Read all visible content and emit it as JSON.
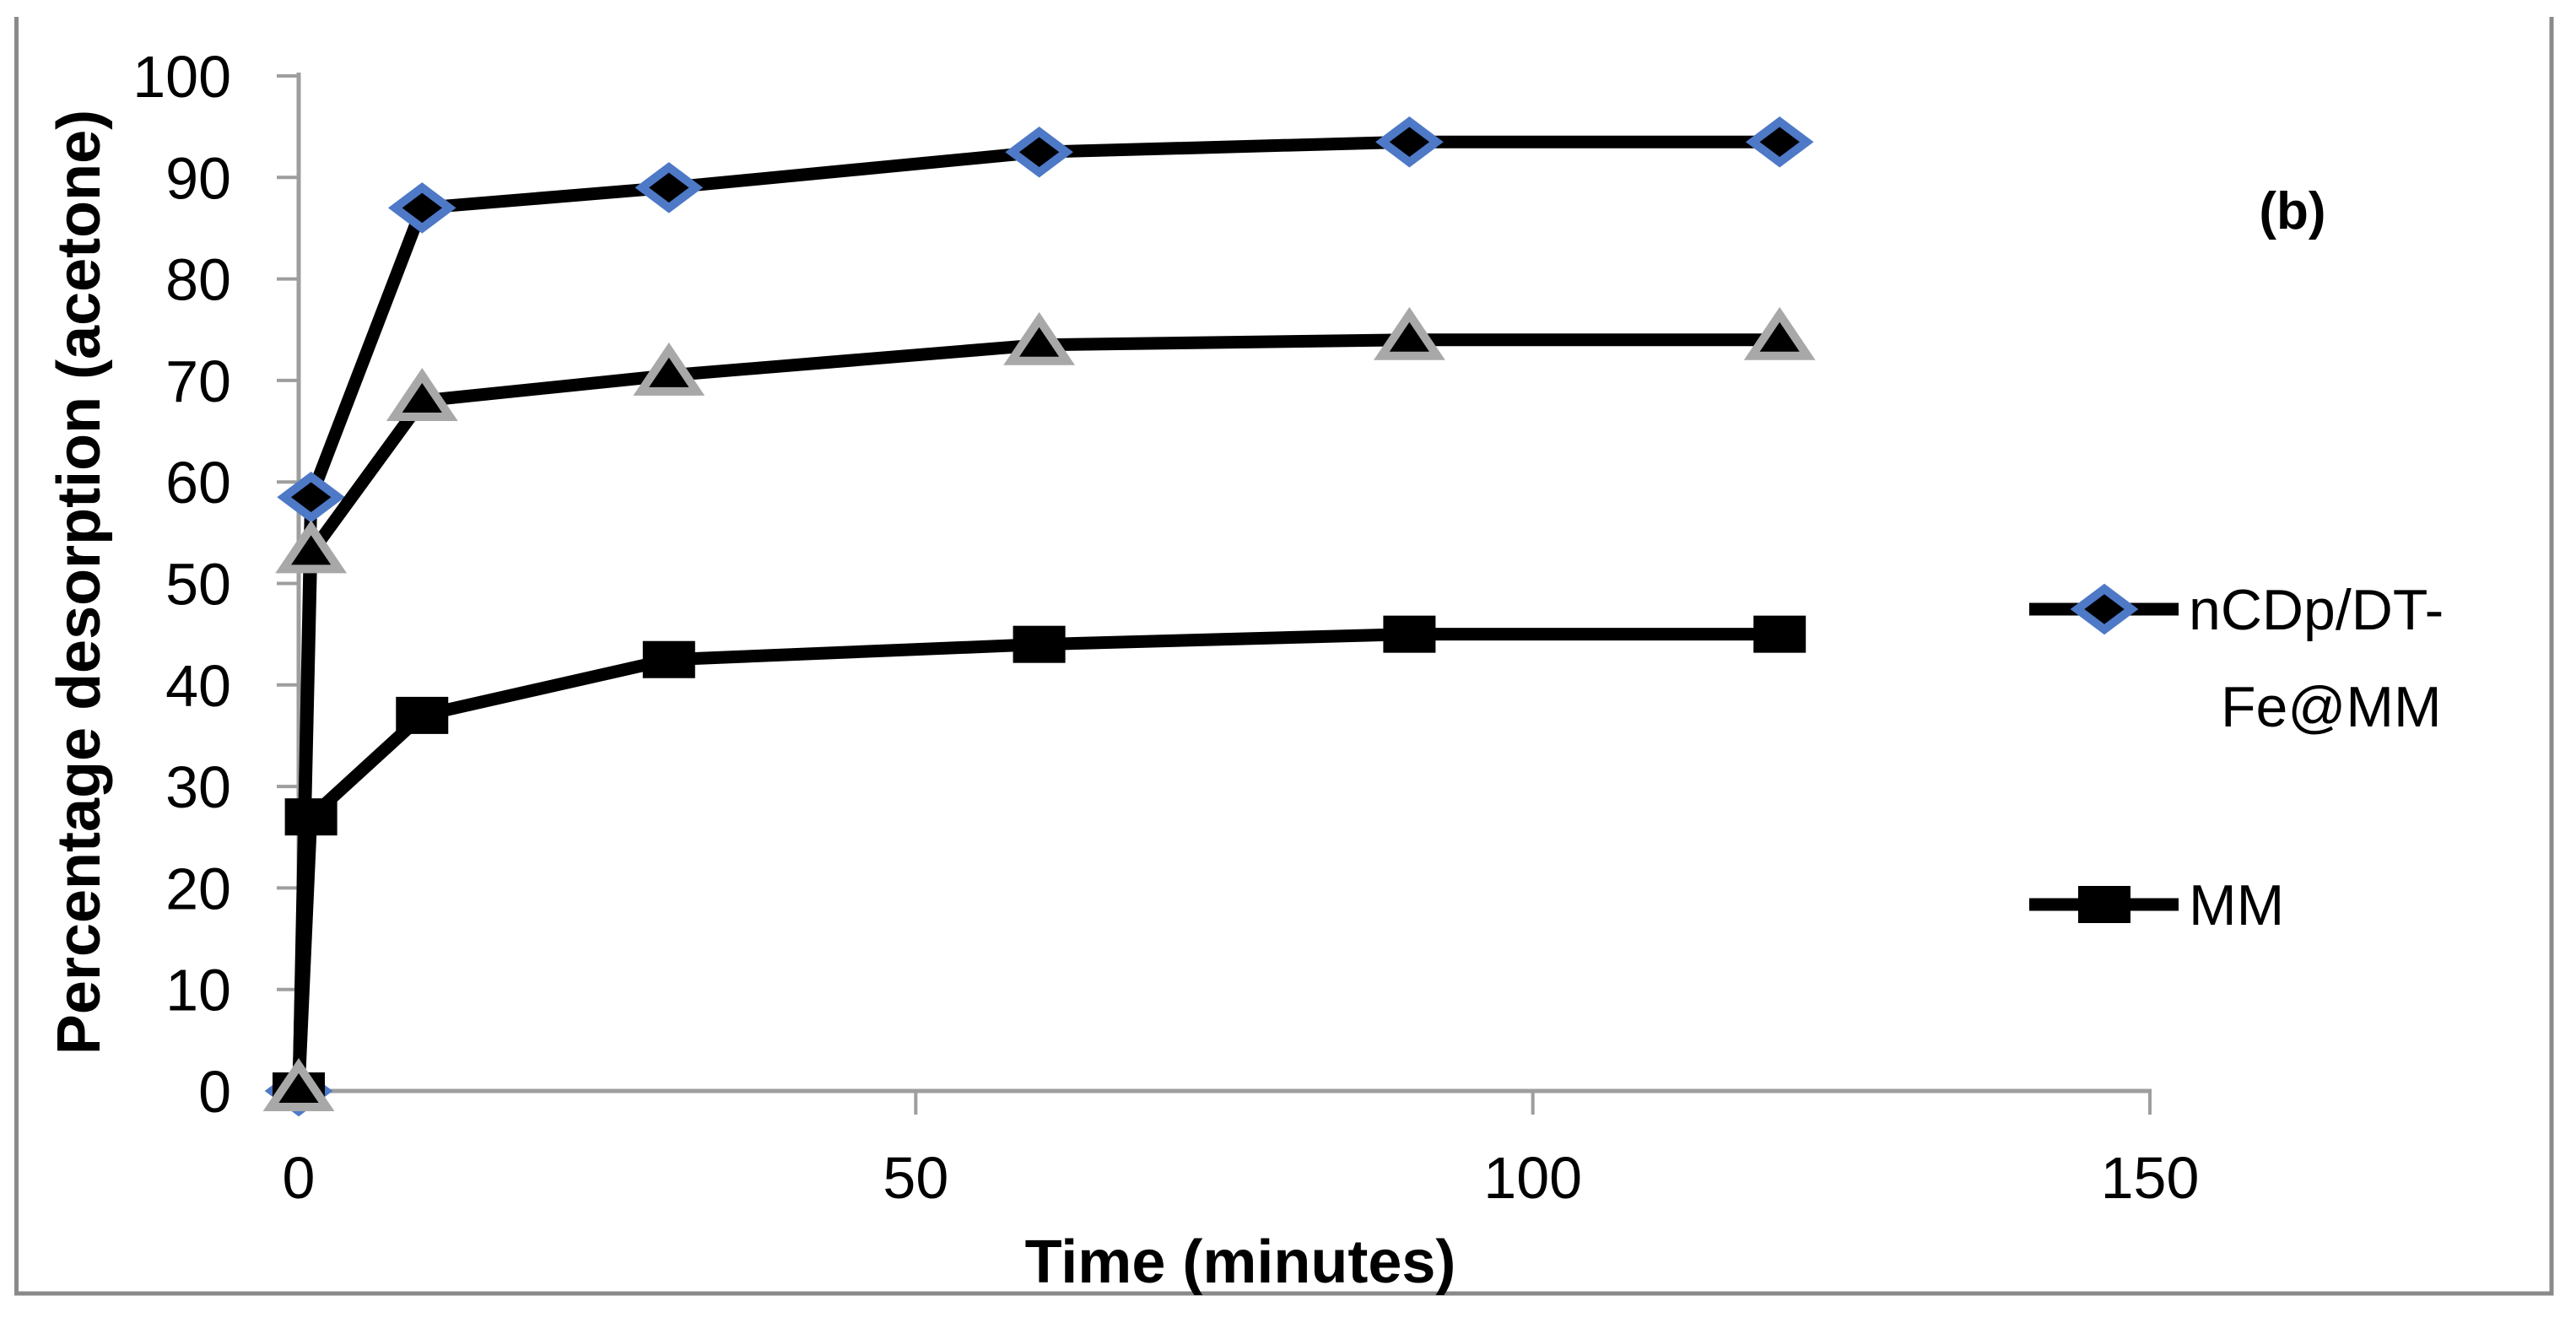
{
  "figure": {
    "panel_label": "(b)",
    "background": "#ffffff",
    "border_color": "#8a8a8a",
    "axis_color": "#9e9e9e",
    "line_color": "#000000",
    "diamond_outline": "#4d79c7",
    "triangle_outline": "#a8a8a8"
  },
  "chart_data": {
    "type": "line",
    "title": "",
    "xlabel": "Time (minutes)",
    "ylabel": "Percentage desorption (acetone)",
    "xlim": [
      0,
      150
    ],
    "ylim": [
      0,
      100
    ],
    "x_ticks": [
      0,
      50,
      100,
      150
    ],
    "y_ticks": [
      0,
      10,
      20,
      30,
      40,
      50,
      60,
      70,
      80,
      90,
      100
    ],
    "grid": false,
    "legend_position": "right",
    "x": [
      0,
      1,
      10,
      30,
      60,
      90,
      120
    ],
    "series": [
      {
        "name": "nCDp/DT-Fe@MM",
        "marker": "diamond",
        "line_color": "#000000",
        "marker_fill": "#000000",
        "marker_outline": "#4d79c7",
        "in_legend": true,
        "values": [
          0,
          58.5,
          87,
          89,
          92.5,
          93.5,
          93.5
        ]
      },
      {
        "name": "MM",
        "marker": "square",
        "line_color": "#000000",
        "marker_fill": "#000000",
        "marker_outline": "#000000",
        "in_legend": true,
        "values": [
          0,
          27,
          37,
          42.5,
          44,
          45,
          45
        ]
      },
      {
        "name": "",
        "marker": "triangle",
        "line_color": "#000000",
        "marker_fill": "#000000",
        "marker_outline": "#a8a8a8",
        "in_legend": false,
        "values": [
          0,
          53,
          68,
          70.5,
          73.5,
          74,
          74
        ]
      }
    ],
    "legend": {
      "entries": [
        {
          "series": "nCDp/DT-Fe@MM",
          "marker": "diamond",
          "label_lines": [
            "nCDp/DT-",
            "Fe@MM"
          ]
        },
        {
          "series": "MM",
          "marker": "square",
          "label_lines": [
            "MM"
          ]
        }
      ]
    }
  }
}
